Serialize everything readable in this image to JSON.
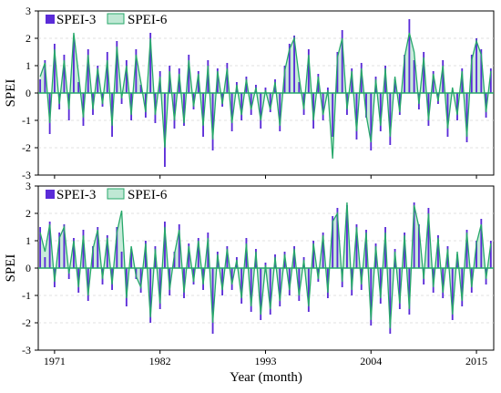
{
  "chart_data": [
    {
      "type": "area",
      "xlabel": "",
      "ylabel": "SPEI",
      "ylim": [
        -3,
        3
      ],
      "yticks": [
        -3,
        -2,
        -1,
        0,
        1,
        2,
        3
      ],
      "grid": "horizontal dashed",
      "legend_placement": "top-left",
      "series": [
        {
          "name": "SPEI-3",
          "color": "#5a2bd8",
          "style": "filled bars",
          "x": [
            1969.5,
            1970.0,
            1970.5,
            1971.0,
            1971.5,
            1972.0,
            1972.5,
            1973.0,
            1973.5,
            1974.0,
            1974.5,
            1975.0,
            1975.5,
            1976.0,
            1976.5,
            1977.0,
            1977.5,
            1978.0,
            1978.5,
            1979.0,
            1979.5,
            1980.0,
            1980.5,
            1981.0,
            1981.5,
            1982.0,
            1982.5,
            1983.0,
            1983.5,
            1984.0,
            1984.5,
            1985.0,
            1985.5,
            1986.0,
            1986.5,
            1987.0,
            1987.5,
            1988.0,
            1988.5,
            1989.0,
            1989.5,
            1990.0,
            1990.5,
            1991.0,
            1991.5,
            1992.0,
            1992.5,
            1993.0,
            1993.5,
            1994.0,
            1994.5,
            1995.0,
            1995.5,
            1996.0,
            1996.5,
            1997.0,
            1997.5,
            1998.0,
            1998.5,
            1999.0,
            1999.5,
            2000.0,
            2000.5,
            2001.0,
            2001.5,
            2002.0,
            2002.5,
            2003.0,
            2003.5,
            2004.0,
            2004.5,
            2005.0,
            2005.5,
            2006.0,
            2006.5,
            2007.0,
            2007.5,
            2008.0,
            2008.5,
            2009.0,
            2009.5,
            2010.0,
            2010.5,
            2011.0,
            2011.5,
            2012.0,
            2012.5,
            2013.0,
            2013.5,
            2014.0,
            2014.5,
            2015.0,
            2015.5,
            2016.0,
            2016.5
          ],
          "values": [
            0.5,
            1.2,
            -1.5,
            1.8,
            -0.6,
            1.4,
            -1.0,
            2.0,
            0.4,
            -1.2,
            1.6,
            -0.8,
            1.0,
            -0.5,
            1.5,
            -1.6,
            1.9,
            -0.4,
            1.2,
            -1.0,
            1.6,
            0.3,
            -0.9,
            2.2,
            -1.1,
            0.8,
            -2.7,
            1.0,
            -1.3,
            0.9,
            -1.2,
            1.4,
            -0.6,
            0.8,
            -1.6,
            1.2,
            -2.1,
            0.9,
            -0.5,
            1.1,
            -1.4,
            0.4,
            -1.0,
            0.6,
            -0.8,
            0.3,
            -1.3,
            0.2,
            -0.7,
            0.5,
            -1.4,
            1.0,
            1.8,
            2.1,
            0.4,
            -0.8,
            1.6,
            -1.3,
            0.7,
            -1.0,
            0.2,
            -1.6,
            1.5,
            2.3,
            -0.8,
            0.9,
            -1.7,
            1.1,
            -0.9,
            -2.1,
            0.6,
            -1.4,
            1.0,
            -1.9,
            0.5,
            -0.8,
            1.4,
            2.7,
            1.2,
            -0.6,
            1.5,
            -1.2,
            0.8,
            -0.4,
            1.2,
            -1.6,
            0.1,
            -1.0,
            0.9,
            -1.8,
            1.4,
            2.0,
            1.6,
            -0.9,
            0.9
          ]
        },
        {
          "name": "SPEI-6",
          "color": "#27a86a",
          "fill": "#bfe8d4",
          "style": "line with area fill",
          "x": [
            1969.5,
            1970.0,
            1970.5,
            1971.0,
            1971.5,
            1972.0,
            1972.5,
            1973.0,
            1973.5,
            1974.0,
            1974.5,
            1975.0,
            1975.5,
            1976.0,
            1976.5,
            1977.0,
            1977.5,
            1978.0,
            1978.5,
            1979.0,
            1979.5,
            1980.0,
            1980.5,
            1981.0,
            1981.5,
            1982.0,
            1982.5,
            1983.0,
            1983.5,
            1984.0,
            1984.5,
            1985.0,
            1985.5,
            1986.0,
            1986.5,
            1987.0,
            1987.5,
            1988.0,
            1988.5,
            1989.0,
            1989.5,
            1990.0,
            1990.5,
            1991.0,
            1991.5,
            1992.0,
            1992.5,
            1993.0,
            1993.5,
            1994.0,
            1994.5,
            1995.0,
            1995.5,
            1996.0,
            1996.5,
            1997.0,
            1997.5,
            1998.0,
            1998.5,
            1999.0,
            1999.5,
            2000.0,
            2000.5,
            2001.0,
            2001.5,
            2002.0,
            2002.5,
            2003.0,
            2003.5,
            2004.0,
            2004.5,
            2005.0,
            2005.5,
            2006.0,
            2006.5,
            2007.0,
            2007.5,
            2008.0,
            2008.5,
            2009.0,
            2009.5,
            2010.0,
            2010.5,
            2011.0,
            2011.5,
            2012.0,
            2012.5,
            2013.0,
            2013.5,
            2014.0,
            2014.5,
            2015.0,
            2015.5,
            2016.0,
            2016.5
          ],
          "values": [
            0.6,
            1.1,
            -1.1,
            1.6,
            -0.4,
            1.2,
            -0.6,
            2.2,
            0.7,
            -0.9,
            1.4,
            -0.6,
            0.9,
            -0.4,
            1.2,
            -1.2,
            1.7,
            -0.2,
            1.0,
            -0.8,
            1.4,
            0.4,
            -0.7,
            2.0,
            -0.8,
            0.6,
            -2.0,
            0.8,
            -1.0,
            0.7,
            -1.1,
            1.2,
            -0.5,
            0.7,
            -1.2,
            1.0,
            -1.7,
            0.8,
            -0.4,
            0.9,
            -1.1,
            0.3,
            -0.8,
            0.5,
            -0.6,
            0.2,
            -1.0,
            0.1,
            -0.6,
            0.4,
            -1.2,
            0.8,
            1.6,
            2.0,
            0.6,
            -0.6,
            1.4,
            -1.0,
            0.6,
            -0.8,
            0.1,
            -2.4,
            1.3,
            2.0,
            -0.6,
            0.8,
            -1.4,
            0.9,
            -0.8,
            -1.8,
            0.5,
            -1.2,
            0.9,
            -1.6,
            0.6,
            -0.7,
            1.3,
            2.2,
            1.5,
            -0.4,
            1.3,
            -1.0,
            0.7,
            -0.3,
            1.0,
            -1.3,
            0.2,
            -0.8,
            0.8,
            -1.6,
            1.2,
            1.9,
            1.4,
            -0.7,
            0.8
          ]
        }
      ]
    },
    {
      "type": "area",
      "xlabel": "Year (month)",
      "ylabel": "SPEI",
      "ylim": [
        -3,
        3
      ],
      "yticks": [
        -3,
        -2,
        -1,
        0,
        1,
        2,
        3
      ],
      "xticks": [
        1971,
        1982,
        1993,
        2004,
        2015
      ],
      "grid": "horizontal dashed",
      "legend_placement": "top-left",
      "series": [
        {
          "name": "SPEI-3",
          "color": "#5a2bd8",
          "style": "filled bars",
          "x": [
            1969.5,
            1970.0,
            1970.5,
            1971.0,
            1971.5,
            1972.0,
            1972.5,
            1973.0,
            1973.5,
            1974.0,
            1974.5,
            1975.0,
            1975.5,
            1976.0,
            1976.5,
            1977.0,
            1977.5,
            1978.0,
            1978.5,
            1979.0,
            1979.5,
            1980.0,
            1980.5,
            1981.0,
            1981.5,
            1982.0,
            1982.5,
            1983.0,
            1983.5,
            1984.0,
            1984.5,
            1985.0,
            1985.5,
            1986.0,
            1986.5,
            1987.0,
            1987.5,
            1988.0,
            1988.5,
            1989.0,
            1989.5,
            1990.0,
            1990.5,
            1991.0,
            1991.5,
            1992.0,
            1992.5,
            1993.0,
            1993.5,
            1994.0,
            1994.5,
            1995.0,
            1995.5,
            1996.0,
            1996.5,
            1997.0,
            1997.5,
            1998.0,
            1998.5,
            1999.0,
            1999.5,
            2000.0,
            2000.5,
            2001.0,
            2001.5,
            2002.0,
            2002.5,
            2003.0,
            2003.5,
            2004.0,
            2004.5,
            2005.0,
            2005.5,
            2006.0,
            2006.5,
            2007.0,
            2007.5,
            2008.0,
            2008.5,
            2009.0,
            2009.5,
            2010.0,
            2010.5,
            2011.0,
            2011.5,
            2012.0,
            2012.5,
            2013.0,
            2013.5,
            2014.0,
            2014.5,
            2015.0,
            2015.5,
            2016.0,
            2016.5
          ],
          "values": [
            1.5,
            0.4,
            1.7,
            -0.7,
            1.3,
            1.6,
            -0.4,
            1.1,
            -0.9,
            1.4,
            -1.2,
            0.8,
            1.5,
            -0.6,
            1.2,
            -0.8,
            1.5,
            0.6,
            -1.4,
            0.7,
            -0.4,
            -0.9,
            1.0,
            -2.0,
            0.8,
            -1.5,
            1.7,
            -1.0,
            0.6,
            1.6,
            -1.1,
            0.9,
            -0.6,
            1.1,
            -0.8,
            1.3,
            -2.4,
            0.6,
            -1.0,
            0.8,
            -0.8,
            0.4,
            -1.3,
            1.1,
            -1.6,
            0.7,
            -1.9,
            0.2,
            -1.7,
            0.5,
            -1.4,
            0.6,
            -1.0,
            0.8,
            -1.2,
            0.4,
            -1.6,
            1.0,
            -0.5,
            1.3,
            -1.1,
            1.9,
            2.2,
            -0.7,
            2.3,
            -1.0,
            1.6,
            -0.8,
            1.4,
            -2.1,
            0.9,
            -1.3,
            1.5,
            -2.4,
            0.7,
            -1.5,
            1.3,
            -1.7,
            2.4,
            1.6,
            -0.6,
            2.2,
            -0.9,
            1.2,
            -1.1,
            0.8,
            -1.9,
            0.5,
            -1.4,
            1.4,
            -0.9,
            1.0,
            1.8,
            -0.6,
            1.0
          ]
        },
        {
          "name": "SPEI-6",
          "color": "#27a86a",
          "fill": "#bfe8d4",
          "style": "line with area fill",
          "x": [
            1969.5,
            1970.0,
            1970.5,
            1971.0,
            1971.5,
            1972.0,
            1972.5,
            1973.0,
            1973.5,
            1974.0,
            1974.5,
            1975.0,
            1975.5,
            1976.0,
            1976.5,
            1977.0,
            1977.5,
            1978.0,
            1978.5,
            1979.0,
            1979.5,
            1980.0,
            1980.5,
            1981.0,
            1981.5,
            1982.0,
            1982.5,
            1983.0,
            1983.5,
            1984.0,
            1984.5,
            1985.0,
            1985.5,
            1986.0,
            1986.5,
            1987.0,
            1987.5,
            1988.0,
            1988.5,
            1989.0,
            1989.5,
            1990.0,
            1990.5,
            1991.0,
            1991.5,
            1992.0,
            1992.5,
            1993.0,
            1993.5,
            1994.0,
            1994.5,
            1995.0,
            1995.5,
            1996.0,
            1996.5,
            1997.0,
            1997.5,
            1998.0,
            1998.5,
            1999.0,
            1999.5,
            2000.0,
            2000.5,
            2001.0,
            2001.5,
            2002.0,
            2002.5,
            2003.0,
            2003.5,
            2004.0,
            2004.5,
            2005.0,
            2005.5,
            2006.0,
            2006.5,
            2007.0,
            2007.5,
            2008.0,
            2008.5,
            2009.0,
            2009.5,
            2010.0,
            2010.5,
            2011.0,
            2011.5,
            2012.0,
            2012.5,
            2013.0,
            2013.5,
            2014.0,
            2014.5,
            2015.0,
            2015.5,
            2016.0,
            2016.5
          ],
          "values": [
            1.3,
            0.6,
            1.6,
            -0.5,
            1.1,
            1.5,
            -0.2,
            1.0,
            -0.7,
            1.2,
            -1.0,
            0.7,
            1.4,
            -0.4,
            1.1,
            -0.6,
            1.3,
            2.1,
            -1.1,
            0.8,
            -0.3,
            -0.7,
            0.9,
            -1.8,
            0.7,
            -1.3,
            1.5,
            -0.8,
            0.5,
            1.4,
            -0.9,
            0.8,
            -0.5,
            1.0,
            -0.6,
            1.1,
            -2.0,
            0.5,
            -0.8,
            0.7,
            -0.6,
            0.3,
            -1.1,
            0.9,
            -1.4,
            0.6,
            -1.7,
            0.1,
            -1.5,
            0.4,
            -1.2,
            0.5,
            -0.8,
            0.7,
            -1.0,
            0.3,
            -1.4,
            0.9,
            -0.4,
            1.2,
            -0.9,
            1.7,
            2.0,
            -0.5,
            2.4,
            -0.8,
            1.5,
            -0.6,
            1.3,
            -1.9,
            0.8,
            -1.1,
            1.3,
            -2.2,
            0.6,
            -1.3,
            1.2,
            -1.5,
            2.3,
            1.5,
            -0.4,
            2.0,
            -0.7,
            1.1,
            -0.9,
            0.7,
            -1.7,
            0.6,
            -1.2,
            1.3,
            -0.7,
            0.9,
            1.6,
            -0.4,
            0.9
          ]
        }
      ]
    }
  ]
}
